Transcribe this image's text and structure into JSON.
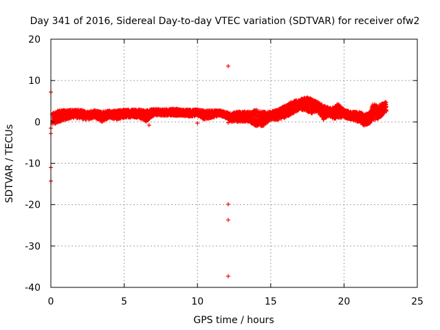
{
  "chart_data": {
    "type": "scatter",
    "title": "Day 341 of 2016, Sidereal Day-to-day VTEC variation (SDTVAR) for receiver ofw2",
    "xlabel": "GPS time / hours",
    "ylabel": "SDTVAR / TECUs",
    "xlim": [
      0,
      25
    ],
    "ylim": [
      -40,
      20
    ],
    "xticks": [
      0,
      5,
      10,
      15,
      20,
      25
    ],
    "yticks": [
      -40,
      -30,
      -20,
      -10,
      0,
      10,
      20
    ],
    "grid": true,
    "marker": "+",
    "color": "#ff0000",
    "band": {
      "x": [
        0.1,
        0.3,
        0.6,
        1.0,
        1.5,
        2.0,
        2.5,
        3.0,
        3.5,
        4.0,
        4.5,
        5.0,
        5.5,
        6.0,
        6.5,
        7.0,
        7.5,
        8.0,
        8.5,
        9.0,
        9.5,
        10.0,
        10.5,
        11.0,
        11.5,
        11.9,
        12.3,
        12.6,
        13.0,
        13.5,
        14.0,
        14.5,
        15.0,
        15.5,
        16.0,
        16.5,
        17.0,
        17.5,
        17.8,
        18.2,
        18.6,
        19.0,
        19.3,
        19.6,
        20.0,
        20.5,
        21.0,
        21.4,
        21.7,
        22.0,
        22.3,
        22.6,
        22.9
      ],
      "low": [
        -0.5,
        -0.5,
        0.0,
        0.5,
        1.0,
        0.8,
        0.5,
        1.0,
        0.0,
        1.0,
        0.5,
        1.0,
        1.0,
        1.0,
        0.0,
        1.5,
        1.5,
        1.5,
        1.5,
        1.5,
        1.2,
        1.5,
        0.5,
        1.0,
        1.5,
        1.0,
        0.0,
        0.0,
        0.0,
        0.0,
        -1.0,
        -1.0,
        0.5,
        0.5,
        1.0,
        2.0,
        3.0,
        2.5,
        2.0,
        2.5,
        0.5,
        1.5,
        0.5,
        1.0,
        1.0,
        0.5,
        0.0,
        -1.0,
        -0.5,
        0.5,
        0.5,
        1.5,
        2.5
      ],
      "high": [
        2.0,
        2.5,
        3.0,
        2.8,
        3.0,
        3.0,
        2.5,
        2.8,
        2.5,
        2.8,
        2.8,
        3.0,
        3.0,
        3.0,
        2.8,
        3.2,
        3.0,
        3.2,
        3.2,
        3.0,
        3.0,
        3.0,
        2.8,
        2.8,
        2.8,
        2.5,
        2.0,
        2.5,
        2.5,
        2.5,
        3.0,
        2.5,
        2.5,
        3.0,
        4.0,
        5.0,
        5.5,
        6.0,
        5.5,
        5.0,
        4.0,
        3.5,
        3.5,
        4.5,
        3.0,
        2.5,
        2.5,
        2.0,
        2.0,
        4.5,
        4.0,
        4.5,
        5.0
      ]
    },
    "outliers": [
      {
        "x": 0.0,
        "y": 7.2
      },
      {
        "x": 0.0,
        "y": -1.5
      },
      {
        "x": 0.0,
        "y": -2.8
      },
      {
        "x": 0.0,
        "y": -11.0
      },
      {
        "x": 0.0,
        "y": -14.3
      },
      {
        "x": 12.1,
        "y": 13.5
      },
      {
        "x": 12.1,
        "y": -0.2
      },
      {
        "x": 12.1,
        "y": -19.9
      },
      {
        "x": 12.1,
        "y": -23.7
      },
      {
        "x": 12.1,
        "y": -37.3
      },
      {
        "x": 6.7,
        "y": -0.8
      },
      {
        "x": 10.0,
        "y": -0.3
      }
    ]
  }
}
